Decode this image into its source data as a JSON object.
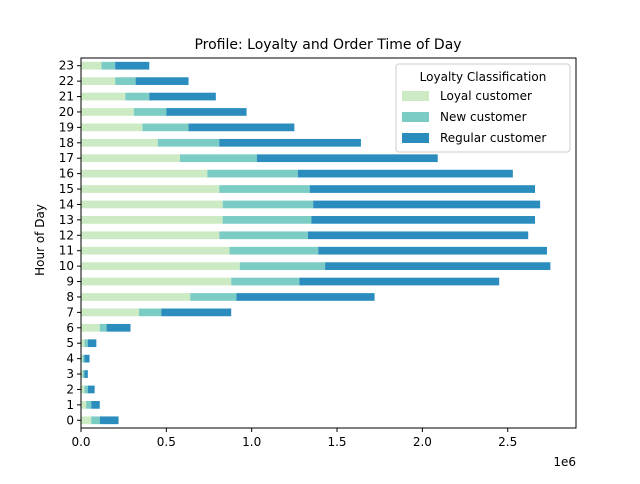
{
  "chart_data": {
    "type": "bar",
    "orientation": "horizontal",
    "stacked": true,
    "title": "Profile: Loyalty and Order Time of Day",
    "xlabel": "",
    "ylabel": "Hour of Day",
    "x_offset_label": "1e6",
    "xlim": [
      0,
      2900000
    ],
    "x_ticks": [
      0,
      500000,
      1000000,
      1500000,
      2000000,
      2500000
    ],
    "x_tick_labels": [
      "0.0",
      "0.5",
      "1.0",
      "1.5",
      "2.0",
      "2.5"
    ],
    "categories": [
      "0",
      "1",
      "2",
      "3",
      "4",
      "5",
      "6",
      "7",
      "8",
      "9",
      "10",
      "11",
      "12",
      "13",
      "14",
      "15",
      "16",
      "17",
      "18",
      "19",
      "20",
      "21",
      "22",
      "23"
    ],
    "legend": {
      "title": "Loyalty Classification",
      "position": "top-right"
    },
    "series": [
      {
        "name": "Loyal customer",
        "color": "#ccebc5",
        "values": [
          60000,
          30000,
          20000,
          10000,
          10000,
          20000,
          110000,
          340000,
          640000,
          880000,
          930000,
          870000,
          810000,
          830000,
          830000,
          810000,
          740000,
          580000,
          450000,
          360000,
          310000,
          260000,
          200000,
          120000
        ]
      },
      {
        "name": "New customer",
        "color": "#7bccc4",
        "values": [
          50000,
          30000,
          20000,
          10000,
          10000,
          20000,
          40000,
          130000,
          270000,
          400000,
          500000,
          520000,
          520000,
          520000,
          530000,
          530000,
          530000,
          450000,
          360000,
          270000,
          190000,
          140000,
          120000,
          80000
        ]
      },
      {
        "name": "Regular customer",
        "color": "#2b8cbe",
        "values": [
          110000,
          50000,
          40000,
          20000,
          30000,
          50000,
          140000,
          410000,
          810000,
          1170000,
          1320000,
          1340000,
          1290000,
          1310000,
          1330000,
          1320000,
          1260000,
          1060000,
          830000,
          620000,
          470000,
          390000,
          310000,
          200000
        ]
      }
    ]
  }
}
